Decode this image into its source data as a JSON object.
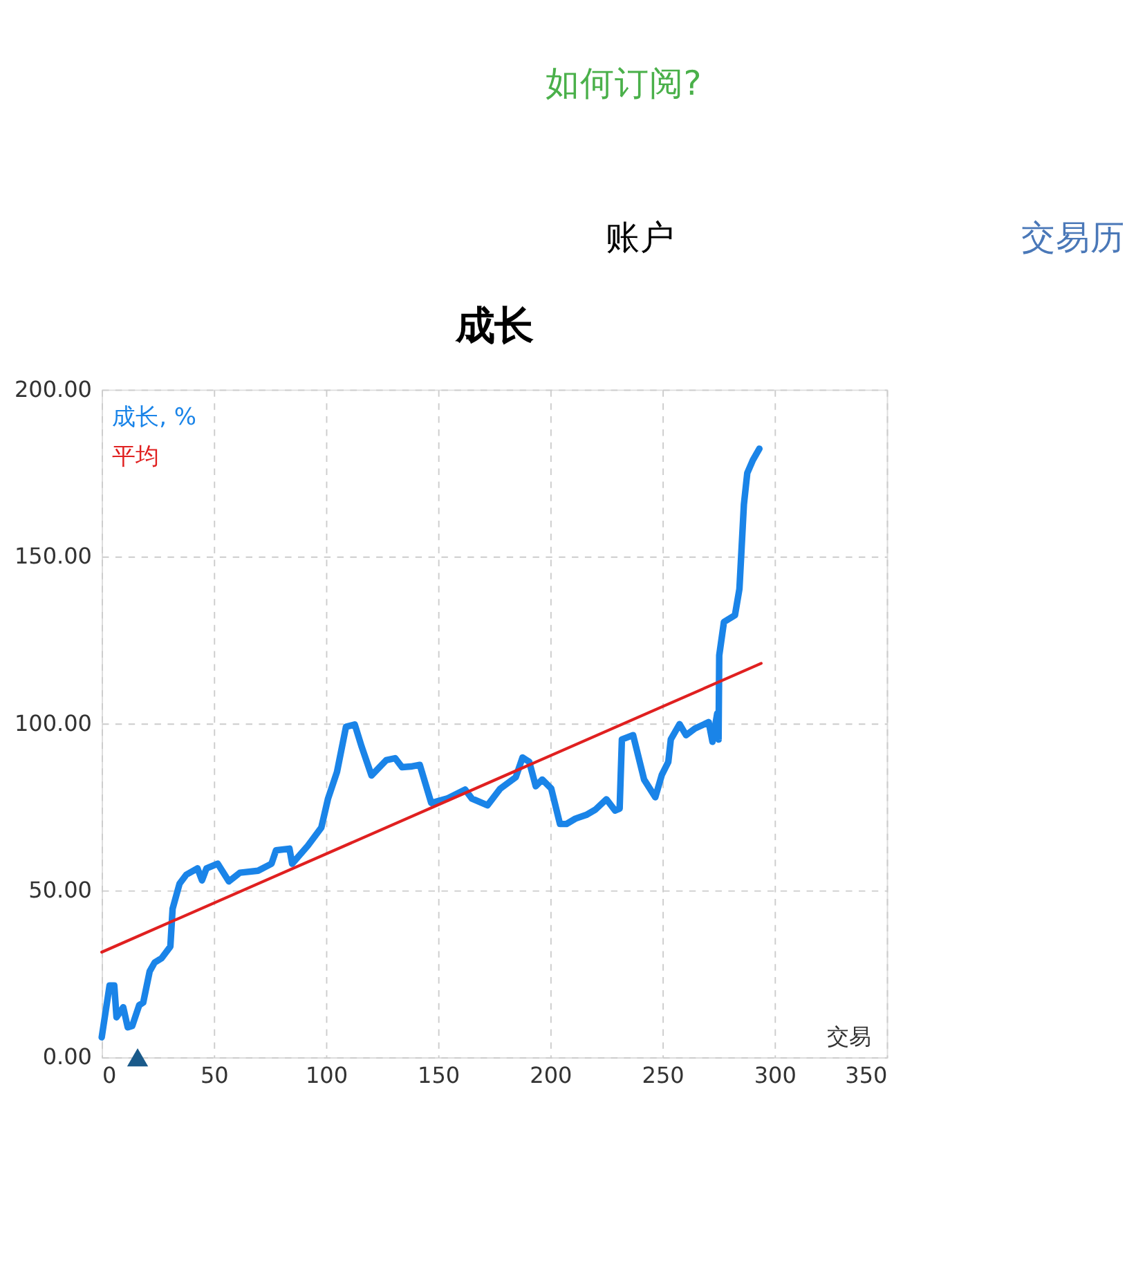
{
  "chart_data": {
    "type": "line",
    "title": "成长",
    "xlabel": "交易",
    "annotations": [
      "如何订阅?",
      "账户",
      "交易历"
    ],
    "xlim": [
      0,
      350
    ],
    "xticks": [
      0,
      50,
      100,
      150,
      200,
      250,
      300,
      350
    ],
    "ylim": [
      0,
      200
    ],
    "yticks": [
      {
        "value": 0,
        "label": "0.00"
      },
      {
        "value": 50,
        "label": "50.00"
      },
      {
        "value": 100,
        "label": "100.00"
      },
      {
        "value": 150,
        "label": "150.00"
      },
      {
        "value": 200,
        "label": "200.00"
      }
    ],
    "grid": true,
    "legend": "top left",
    "line_style": "solid",
    "marker": "none",
    "series": [
      {
        "name": "成长, %",
        "color": "#1a84e8",
        "x": [
          0,
          3.5,
          5.6,
          6.6,
          9.6,
          11.6,
          13.6,
          16.7,
          18.5,
          21.4,
          23.6,
          26.7,
          30.6,
          31.6,
          34.7,
          37.7,
          42.7,
          44.7,
          46.7,
          51.7,
          56.7,
          61.6,
          69.7,
          75.7,
          77.7,
          83.7,
          84.9,
          91.9,
          97.9,
          100.9,
          104.9,
          108.9,
          112.8,
          115.9,
          120.3,
          126.8,
          130.8,
          133.9,
          137.8,
          141.8,
          146.9,
          154,
          162,
          165,
          172,
          177.7,
          184.6,
          187.6,
          190.6,
          193.5,
          196.4,
          200.4,
          204.3,
          207.2,
          211.2,
          216,
          220.1,
          225,
          228.9,
          230.9,
          231.9,
          236.9,
          241.8,
          246.8,
          249.7,
          252.6,
          253.7,
          257.6,
          260.5,
          264.5,
          270.6,
          272.3,
          274.4,
          275,
          275.3,
          277.4,
          282.3,
          284.3,
          286.3,
          287.8,
          290.3,
          293.2
        ],
        "values": [
          6,
          21.5,
          21.5,
          12,
          15,
          9,
          9.4,
          15.6,
          16.4,
          25.8,
          28.4,
          29.7,
          33.2,
          44.5,
          52,
          54.7,
          56.6,
          53,
          56.6,
          58,
          52.7,
          55.3,
          55.9,
          58,
          62,
          62.5,
          58,
          63.4,
          68.8,
          77.5,
          85.5,
          99,
          99.7,
          93,
          84.4,
          89,
          89.6,
          86.9,
          87.1,
          87.6,
          76.2,
          77.5,
          80.2,
          77.5,
          75.5,
          80.5,
          83.9,
          89.8,
          88.5,
          81.2,
          83.2,
          80.5,
          69.9,
          69.9,
          71.5,
          72.6,
          74.2,
          77.3,
          73.9,
          74.5,
          95.2,
          96.5,
          83.2,
          77.9,
          84.6,
          88.5,
          95.2,
          99.8,
          96.5,
          98.5,
          100.4,
          94.5,
          103,
          95.2,
          120.4,
          130.4,
          132.4,
          140.3,
          165.6,
          175,
          178.9,
          182.3
        ]
      },
      {
        "name": "平均",
        "color": "#e02020",
        "x": [
          0,
          294
        ],
        "values": [
          31.5,
          118
        ]
      },
      {
        "color": "#1a5a8a",
        "type": "scatter",
        "marker": "triangle",
        "x": [
          16
        ],
        "values": [
          0
        ]
      }
    ]
  }
}
